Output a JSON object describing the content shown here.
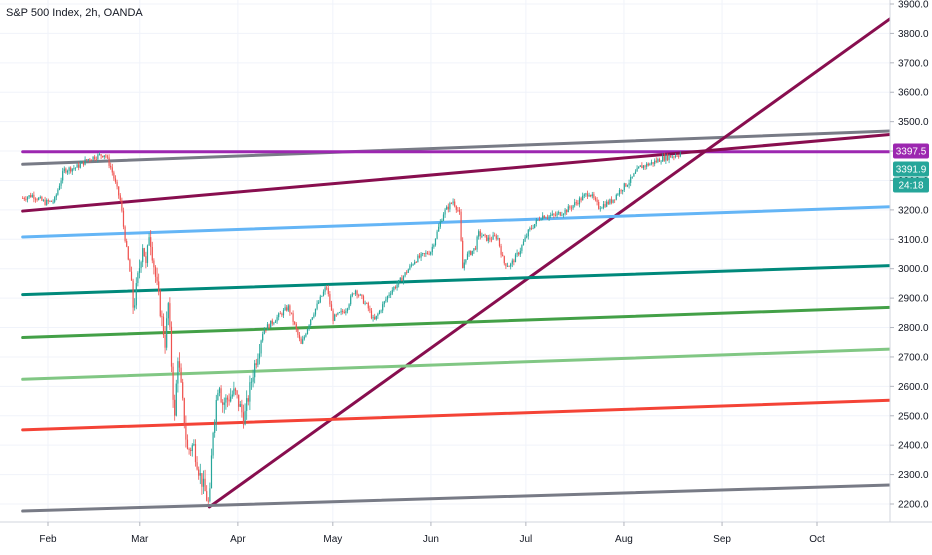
{
  "header": {
    "symbol_title": "S&P 500 Index, 2h, OANDA"
  },
  "price_axis": {
    "ticks": [
      "3900.0",
      "3800.0",
      "3700.0",
      "3600.0",
      "3500.0",
      "3400.0",
      "3300.0",
      "3200.0",
      "3100.0",
      "3000.0",
      "2900.0",
      "2800.0",
      "2700.0",
      "2600.0",
      "2500.0",
      "2400.0",
      "2300.0",
      "2200.0"
    ],
    "badges": [
      {
        "text": "3397.5",
        "color": "#9c27b0"
      },
      {
        "text": "3391.9",
        "color": "#26a69a"
      },
      {
        "text": "24:18",
        "color": "#26a69a"
      }
    ]
  },
  "time_axis": {
    "labels": [
      "Feb",
      "Mar",
      "Apr",
      "May",
      "Jun",
      "Jul",
      "Aug",
      "Sep",
      "Oct"
    ]
  },
  "colors": {
    "up": "#26a69a",
    "down": "#ef5350",
    "grid": "#f0f3fa",
    "axis_border": "#d1d4dc"
  },
  "chart_data": {
    "type": "candlestick",
    "y_range": [
      2180,
      3920
    ],
    "price_series_path_points": [
      [
        "Jan 24",
        3240
      ],
      [
        "Jan 27",
        3250
      ],
      [
        "Jan 31",
        3225
      ],
      [
        "Feb 3",
        3230
      ],
      [
        "Feb 6",
        3335
      ],
      [
        "Feb 10",
        3345
      ],
      [
        "Feb 14",
        3375
      ],
      [
        "Feb 19",
        3390
      ],
      [
        "Feb 21",
        3340
      ],
      [
        "Feb 24",
        3225
      ],
      [
        "Feb 25",
        3130
      ],
      [
        "Feb 27",
        2980
      ],
      [
        "Feb 28",
        2860
      ],
      [
        "Mar 2",
        3090
      ],
      [
        "Mar 3",
        3000
      ],
      [
        "Mar 4",
        3130
      ],
      [
        "Mar 6",
        2970
      ],
      [
        "Mar 9",
        2750
      ],
      [
        "Mar 10",
        2880
      ],
      [
        "Mar 12",
        2480
      ],
      [
        "Mar 13",
        2710
      ],
      [
        "Mar 16",
        2380
      ],
      [
        "Mar 18",
        2400
      ],
      [
        "Mar 20",
        2300
      ],
      [
        "Mar 23",
        2190
      ],
      [
        "Mar 24",
        2440
      ],
      [
        "Mar 26",
        2630
      ],
      [
        "Mar 27",
        2540
      ],
      [
        "Mar 31",
        2580
      ],
      [
        "Apr 3",
        2490
      ],
      [
        "Apr 6",
        2660
      ],
      [
        "Apr 9",
        2790
      ],
      [
        "Apr 14",
        2840
      ],
      [
        "Apr 17",
        2870
      ],
      [
        "Apr 21",
        2740
      ],
      [
        "Apr 24",
        2830
      ],
      [
        "Apr 29",
        2940
      ],
      [
        "May 1",
        2830
      ],
      [
        "May 5",
        2860
      ],
      [
        "May 8",
        2930
      ],
      [
        "May 12",
        2870
      ],
      [
        "May 14",
        2820
      ],
      [
        "May 19",
        2920
      ],
      [
        "May 22",
        2955
      ],
      [
        "May 27",
        3030
      ],
      [
        "Jun 1",
        3060
      ],
      [
        "Jun 5",
        3190
      ],
      [
        "Jun 8",
        3230
      ],
      [
        "Jun 10",
        3190
      ],
      [
        "Jun 11",
        3000
      ],
      [
        "Jun 12",
        3040
      ],
      [
        "Jun 15",
        3070
      ],
      [
        "Jun 16",
        3120
      ],
      [
        "Jun 19",
        3100
      ],
      [
        "Jun 22",
        3110
      ],
      [
        "Jun 24",
        3020
      ],
      [
        "Jun 26",
        3010
      ],
      [
        "Jun 29",
        3060
      ],
      [
        "Jul 2",
        3130
      ],
      [
        "Jul 6",
        3180
      ],
      [
        "Jul 10",
        3180
      ],
      [
        "Jul 14",
        3200
      ],
      [
        "Jul 17",
        3225
      ],
      [
        "Jul 21",
        3260
      ],
      [
        "Jul 24",
        3210
      ],
      [
        "Jul 28",
        3230
      ],
      [
        "Jul 31",
        3270
      ],
      [
        "Aug 3",
        3300
      ],
      [
        "Aug 6",
        3345
      ],
      [
        "Aug 10",
        3360
      ],
      [
        "Aug 13",
        3375
      ],
      [
        "Aug 17",
        3385
      ],
      [
        "Aug 19",
        3392
      ]
    ],
    "trendlines": [
      {
        "color": "#787b86",
        "points": [
          [
            "Jan 24",
            3355
          ],
          [
            "Oct 28",
            3470
          ]
        ]
      },
      {
        "color": "#9c27b0",
        "points": [
          [
            "Jan 24",
            3397.5
          ],
          [
            "Oct 28",
            3397.5
          ]
        ]
      },
      {
        "color": "#880e4f",
        "points": [
          [
            "Jan 24",
            3196
          ],
          [
            "Oct 28",
            3460
          ]
        ]
      },
      {
        "color": "#880e4f",
        "points": [
          [
            "Mar 23",
            2190
          ],
          [
            "Oct 28",
            3880
          ]
        ]
      },
      {
        "color": "#64b5f6",
        "points": [
          [
            "Jan 24",
            3108
          ],
          [
            "Oct 28",
            3212
          ]
        ]
      },
      {
        "color": "#00897b",
        "points": [
          [
            "Jan 24",
            2912
          ],
          [
            "Oct 28",
            3012
          ]
        ]
      },
      {
        "color": "#43a047",
        "points": [
          [
            "Jan 24",
            2766
          ],
          [
            "Oct 28",
            2870
          ]
        ]
      },
      {
        "color": "#81c784",
        "points": [
          [
            "Jan 24",
            2624
          ],
          [
            "Oct 28",
            2728
          ]
        ]
      },
      {
        "color": "#f44336",
        "points": [
          [
            "Jan 24",
            2452
          ],
          [
            "Oct 28",
            2554
          ]
        ]
      },
      {
        "color": "#787b86",
        "points": [
          [
            "Jan 24",
            2176
          ],
          [
            "Oct 28",
            2266
          ]
        ]
      }
    ]
  }
}
